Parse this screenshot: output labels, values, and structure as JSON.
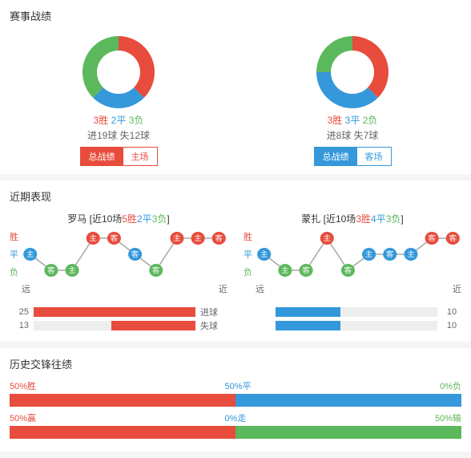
{
  "colors": {
    "win": "#e74c3c",
    "draw": "#3498db",
    "loss": "#5cb85c",
    "grey": "#888",
    "bg": "#ffffff",
    "track": "#eeeeee"
  },
  "match_record": {
    "title": "赛事战绩",
    "home": {
      "donut": {
        "segments": [
          {
            "pct": 37.5,
            "color": "#e74c3c"
          },
          {
            "pct": 25,
            "color": "#3498db"
          },
          {
            "pct": 37.5,
            "color": "#5cb85c"
          }
        ],
        "size": 90,
        "thickness": 18
      },
      "wdl": {
        "w": "3胜",
        "d": "2平",
        "l": "3负"
      },
      "goals": "进19球 失12球",
      "buttonsColor": "red",
      "btn1": "总战绩",
      "btn2": "主场",
      "activeBtn": 1
    },
    "away": {
      "donut": {
        "segments": [
          {
            "pct": 37.5,
            "color": "#e74c3c"
          },
          {
            "pct": 37.5,
            "color": "#3498db"
          },
          {
            "pct": 25,
            "color": "#5cb85c"
          }
        ],
        "size": 90,
        "thickness": 18
      },
      "wdl": {
        "w": "3胜",
        "d": "3平",
        "l": "2负"
      },
      "goals": "进8球 失7球",
      "buttonsColor": "blue",
      "btn1": "总战绩",
      "btn2": "客场",
      "activeBtn": 1
    }
  },
  "recent": {
    "title": "近期表现",
    "yLabels": {
      "w": "胜",
      "d": "平",
      "l": "负"
    },
    "xLabels": {
      "far": "远",
      "near": "近"
    },
    "home": {
      "name": "罗马",
      "prefix": "[近10场",
      "w": "5胜",
      "d": "2平",
      "l": "3负",
      "suffix": "]",
      "series": [
        {
          "r": "D",
          "ha": "主"
        },
        {
          "r": "L",
          "ha": "客"
        },
        {
          "r": "L",
          "ha": "主"
        },
        {
          "r": "W",
          "ha": "主"
        },
        {
          "r": "W",
          "ha": "客"
        },
        {
          "r": "D",
          "ha": "客"
        },
        {
          "r": "L",
          "ha": "客"
        },
        {
          "r": "W",
          "ha": "主"
        },
        {
          "r": "W",
          "ha": "主"
        },
        {
          "r": "W",
          "ha": "客"
        }
      ],
      "goals_for": 25,
      "goals_against": 13,
      "bar_for_pct": 100,
      "bar_against_pct": 52,
      "bar_for_color": "#e74c3c",
      "bar_against_color": "#e74c3c"
    },
    "away": {
      "name": "蒙扎",
      "prefix": "[近10场",
      "w": "3胜",
      "d": "4平",
      "l": "3负",
      "suffix": "]",
      "series": [
        {
          "r": "D",
          "ha": "主"
        },
        {
          "r": "L",
          "ha": "主"
        },
        {
          "r": "L",
          "ha": "客"
        },
        {
          "r": "W",
          "ha": "主"
        },
        {
          "r": "L",
          "ha": "客"
        },
        {
          "r": "D",
          "ha": "主"
        },
        {
          "r": "D",
          "ha": "客"
        },
        {
          "r": "D",
          "ha": "主"
        },
        {
          "r": "W",
          "ha": "客"
        },
        {
          "r": "W",
          "ha": "客"
        }
      ],
      "for_label": "进球",
      "against_label": "失球",
      "goals_for": 10,
      "goals_against": 10,
      "bar_for_pct": 40,
      "bar_against_pct": 40,
      "bar_for_color": "#3498db",
      "bar_against_color": "#3498db"
    }
  },
  "h2h": {
    "title": "历史交锋往绩",
    "row1": {
      "labels": {
        "l": "50%胜",
        "m": "50%平",
        "r": "0%负"
      },
      "segs": [
        {
          "pct": 50,
          "color": "#e74c3c"
        },
        {
          "pct": 50,
          "color": "#3498db"
        },
        {
          "pct": 0,
          "color": "#5cb85c"
        }
      ]
    },
    "row2": {
      "labels": {
        "l": "50%赢",
        "m": "0%走",
        "r": "50%输"
      },
      "segs": [
        {
          "pct": 50,
          "color": "#e74c3c"
        },
        {
          "pct": 0,
          "color": "#3498db"
        },
        {
          "pct": 50,
          "color": "#5cb85c"
        }
      ]
    }
  }
}
